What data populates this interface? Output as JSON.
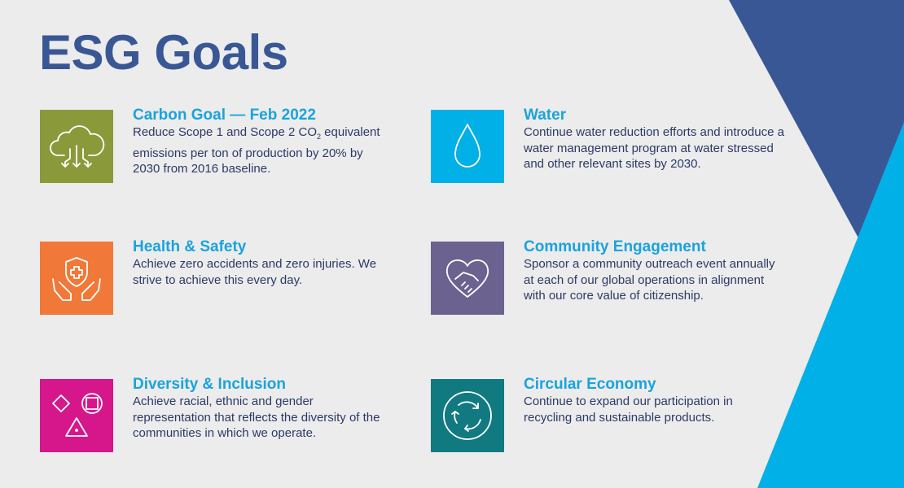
{
  "page": {
    "title": "ESG Goals",
    "accent_dark": "#3a5795",
    "accent_light": "#00b0e6"
  },
  "goals": [
    {
      "id": "carbon",
      "title": "Carbon Goal — Feb 2022",
      "text_before_sub": "Reduce Scope 1 and Scope 2 CO",
      "sub": "2",
      "text_after_sub": " equivalent emissions per ton of production by 20% by 2030 from 2016 baseline.",
      "icon": "cloud-download-icon",
      "color": "#8a9a3a"
    },
    {
      "id": "water",
      "title": "Water",
      "text": "Continue water reduction efforts and introduce a water management program at water stressed and other relevant sites by 2030.",
      "icon": "water-drop-icon",
      "color": "#00b0e6"
    },
    {
      "id": "health-safety",
      "title": "Health & Safety",
      "text": "Achieve zero accidents and zero injuries. We strive to achieve this every day.",
      "icon": "hands-shield-icon",
      "color": "#f07838"
    },
    {
      "id": "community",
      "title": "Community Engagement",
      "text": "Sponsor a community outreach event annually at each of our global operations in alignment with our core value of citizenship.",
      "icon": "heart-handshake-icon",
      "color": "#6b6290"
    },
    {
      "id": "diversity",
      "title": "Diversity & Inclusion",
      "text": "Achieve racial, ethnic and gender representation that reflects the diversity of the communities in which we operate.",
      "icon": "shapes-icon",
      "color": "#d6168b"
    },
    {
      "id": "circular",
      "title": "Circular Economy",
      "text": "Continue to expand our participation in recycling and sustainable products.",
      "icon": "recycle-arrows-icon",
      "color": "#107a80"
    }
  ]
}
